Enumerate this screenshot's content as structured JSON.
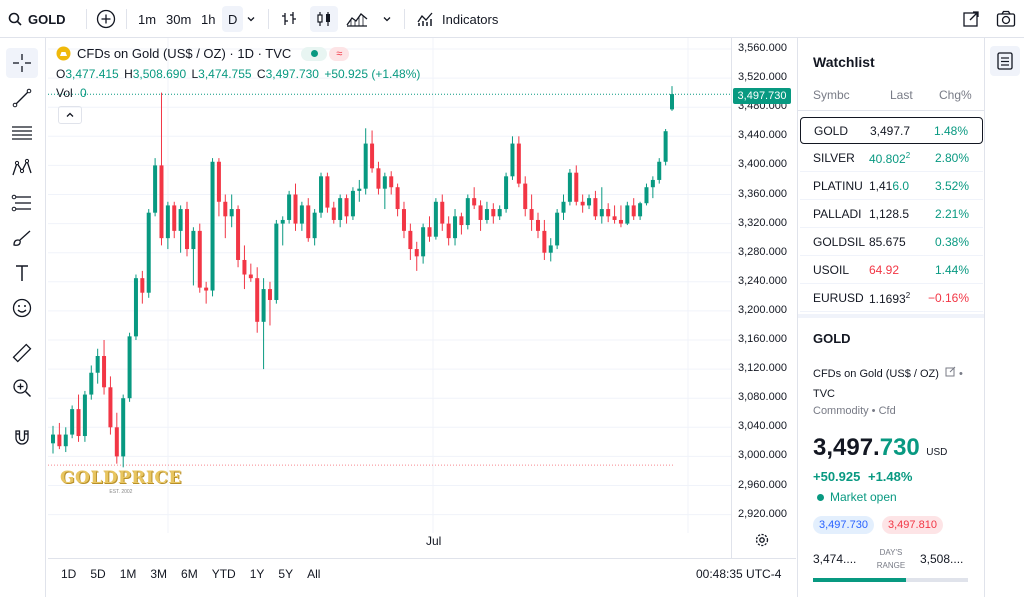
{
  "topbar": {
    "symbol": "GOLD",
    "intervals": [
      "1m",
      "30m",
      "1h",
      "D"
    ],
    "indicators_label": "Indicators"
  },
  "legend": {
    "title": "CFDs on Gold (US$ / OZ) · 1D · TVC",
    "open_label": "O",
    "open": "3,477.415",
    "high_label": "H",
    "high": "3,508.690",
    "low_label": "L",
    "low": "3,474.755",
    "close_label": "C",
    "close": "3,497.730",
    "change": "+50.925 (+1.48%)",
    "vol_label": "Vol",
    "vol": "0"
  },
  "price_axis": {
    "ticks": [
      "3,560.000",
      "3,520.000",
      "3,480.000",
      "3,440.000",
      "3,400.000",
      "3,360.000",
      "3,320.000",
      "3,280.000",
      "3,240.000",
      "3,200.000",
      "3,160.000",
      "3,120.000",
      "3,080.000",
      "3,040.000",
      "3,000.000",
      "2,960.000",
      "2,920.000"
    ],
    "last_price": "3,497.730"
  },
  "time_axis": {
    "label": "Jul"
  },
  "watermark": {
    "text": "GOLDPRICE",
    "sub": "EST. 2002"
  },
  "bottombar": {
    "ranges": [
      "1D",
      "5D",
      "1M",
      "3M",
      "6M",
      "YTD",
      "1Y",
      "5Y",
      "All"
    ],
    "clock": "00:48:35 UTC-4"
  },
  "watchlist": {
    "title": "Watchlist",
    "columns": [
      "Symbc",
      "Last",
      "Chg%"
    ],
    "rows": [
      {
        "symbol": "GOLD",
        "last": "3,497.7",
        "chg": "1.48%",
        "last_dir": "neutral",
        "chg_dir": "up"
      },
      {
        "symbol": "SILVER",
        "last": "40.802",
        "last_sup": "2",
        "chg": "2.80%",
        "last_dir": "up",
        "chg_dir": "up"
      },
      {
        "symbol": "PLATINU",
        "last": "1,41",
        "last_tail": "6.0",
        "chg": "3.52%",
        "last_dir": "neutral",
        "chg_dir": "up"
      },
      {
        "symbol": "PALLADI",
        "last": "1,128.5",
        "chg": "2.21%",
        "last_dir": "neutral",
        "chg_dir": "up"
      },
      {
        "symbol": "GOLDSIL",
        "last": "85.675",
        "chg": "0.38%",
        "last_dir": "neutral",
        "chg_dir": "up"
      },
      {
        "symbol": "USOIL",
        "last": "64.92",
        "chg": "1.44%",
        "last_dir": "down",
        "chg_dir": "up"
      },
      {
        "symbol": "EURUSD",
        "last": "1.1693",
        "last_sup": "2",
        "chg": "−0.16%",
        "last_dir": "neutral",
        "chg_dir": "down"
      }
    ]
  },
  "details": {
    "symbol": "GOLD",
    "name": "CFDs on Gold (US$ / OZ)",
    "exchange": "TVC",
    "category": "Commodity • Cfd",
    "price_main": "3,497.",
    "price_frac": "730",
    "currency": "USD",
    "change": "+50.925",
    "change_pct": "+1.48%",
    "market_status": "Market open",
    "bid": "3,497.730",
    "ask": "3,497.810",
    "range_low": "3,474....",
    "range_label_1": "DAY'S",
    "range_label_2": "RANGE",
    "range_high": "3,508...."
  },
  "colors": {
    "up": "#089981",
    "down": "#f23645",
    "accent": "#2962ff"
  },
  "chart_data": {
    "type": "candlestick",
    "ylim": [
      2900,
      3570
    ],
    "candles": [
      {
        "o": 3018,
        "h": 3042,
        "l": 3004,
        "c": 3030
      },
      {
        "o": 3030,
        "h": 3046,
        "l": 3010,
        "c": 3014
      },
      {
        "o": 3014,
        "h": 3040,
        "l": 3006,
        "c": 3030
      },
      {
        "o": 3030,
        "h": 3070,
        "l": 3025,
        "c": 3065
      },
      {
        "o": 3065,
        "h": 3085,
        "l": 3020,
        "c": 3028
      },
      {
        "o": 3028,
        "h": 3090,
        "l": 3020,
        "c": 3085
      },
      {
        "o": 3085,
        "h": 3125,
        "l": 3078,
        "c": 3115
      },
      {
        "o": 3115,
        "h": 3148,
        "l": 3100,
        "c": 3138
      },
      {
        "o": 3138,
        "h": 3160,
        "l": 3085,
        "c": 3095
      },
      {
        "o": 3095,
        "h": 3110,
        "l": 3030,
        "c": 3040
      },
      {
        "o": 3040,
        "h": 3060,
        "l": 2990,
        "c": 3000
      },
      {
        "o": 3000,
        "h": 3085,
        "l": 2985,
        "c": 3080
      },
      {
        "o": 3080,
        "h": 3170,
        "l": 3075,
        "c": 3165
      },
      {
        "o": 3165,
        "h": 3250,
        "l": 3160,
        "c": 3245
      },
      {
        "o": 3245,
        "h": 3255,
        "l": 3210,
        "c": 3225
      },
      {
        "o": 3225,
        "h": 3340,
        "l": 3218,
        "c": 3335
      },
      {
        "o": 3335,
        "h": 3410,
        "l": 3330,
        "c": 3400
      },
      {
        "o": 3400,
        "h": 3500,
        "l": 3290,
        "c": 3300
      },
      {
        "o": 3300,
        "h": 3350,
        "l": 3285,
        "c": 3345
      },
      {
        "o": 3345,
        "h": 3350,
        "l": 3300,
        "c": 3310
      },
      {
        "o": 3310,
        "h": 3345,
        "l": 3280,
        "c": 3340
      },
      {
        "o": 3340,
        "h": 3350,
        "l": 3275,
        "c": 3285
      },
      {
        "o": 3285,
        "h": 3315,
        "l": 3235,
        "c": 3310
      },
      {
        "o": 3310,
        "h": 3320,
        "l": 3225,
        "c": 3232
      },
      {
        "o": 3232,
        "h": 3240,
        "l": 3210,
        "c": 3228
      },
      {
        "o": 3228,
        "h": 3410,
        "l": 3220,
        "c": 3405
      },
      {
        "o": 3405,
        "h": 3410,
        "l": 3330,
        "c": 3350
      },
      {
        "o": 3350,
        "h": 3360,
        "l": 3300,
        "c": 3330
      },
      {
        "o": 3330,
        "h": 3360,
        "l": 3315,
        "c": 3340
      },
      {
        "o": 3340,
        "h": 3345,
        "l": 3260,
        "c": 3270
      },
      {
        "o": 3270,
        "h": 3290,
        "l": 3230,
        "c": 3250
      },
      {
        "o": 3250,
        "h": 3265,
        "l": 3240,
        "c": 3245
      },
      {
        "o": 3245,
        "h": 3260,
        "l": 3170,
        "c": 3185
      },
      {
        "o": 3185,
        "h": 3245,
        "l": 3120,
        "c": 3230
      },
      {
        "o": 3230,
        "h": 3240,
        "l": 3180,
        "c": 3215
      },
      {
        "o": 3215,
        "h": 3325,
        "l": 3210,
        "c": 3320
      },
      {
        "o": 3320,
        "h": 3330,
        "l": 3290,
        "c": 3325
      },
      {
        "o": 3325,
        "h": 3365,
        "l": 3320,
        "c": 3360
      },
      {
        "o": 3360,
        "h": 3375,
        "l": 3310,
        "c": 3320
      },
      {
        "o": 3320,
        "h": 3350,
        "l": 3310,
        "c": 3345
      },
      {
        "o": 3345,
        "h": 3355,
        "l": 3295,
        "c": 3300
      },
      {
        "o": 3300,
        "h": 3340,
        "l": 3290,
        "c": 3335
      },
      {
        "o": 3335,
        "h": 3390,
        "l": 3328,
        "c": 3385
      },
      {
        "o": 3385,
        "h": 3390,
        "l": 3335,
        "c": 3342
      },
      {
        "o": 3342,
        "h": 3350,
        "l": 3320,
        "c": 3325
      },
      {
        "o": 3325,
        "h": 3360,
        "l": 3315,
        "c": 3355
      },
      {
        "o": 3355,
        "h": 3360,
        "l": 3320,
        "c": 3330
      },
      {
        "o": 3330,
        "h": 3370,
        "l": 3325,
        "c": 3365
      },
      {
        "o": 3365,
        "h": 3380,
        "l": 3350,
        "c": 3368
      },
      {
        "o": 3368,
        "h": 3451,
        "l": 3360,
        "c": 3430
      },
      {
        "o": 3430,
        "h": 3448,
        "l": 3390,
        "c": 3396
      },
      {
        "o": 3396,
        "h": 3405,
        "l": 3360,
        "c": 3368
      },
      {
        "o": 3368,
        "h": 3390,
        "l": 3340,
        "c": 3385
      },
      {
        "o": 3385,
        "h": 3392,
        "l": 3360,
        "c": 3370
      },
      {
        "o": 3370,
        "h": 3375,
        "l": 3330,
        "c": 3340
      },
      {
        "o": 3340,
        "h": 3350,
        "l": 3300,
        "c": 3310
      },
      {
        "o": 3310,
        "h": 3320,
        "l": 3270,
        "c": 3285
      },
      {
        "o": 3285,
        "h": 3295,
        "l": 3255,
        "c": 3275
      },
      {
        "o": 3275,
        "h": 3320,
        "l": 3265,
        "c": 3315
      },
      {
        "o": 3315,
        "h": 3330,
        "l": 3295,
        "c": 3302
      },
      {
        "o": 3302,
        "h": 3355,
        "l": 3298,
        "c": 3350
      },
      {
        "o": 3350,
        "h": 3360,
        "l": 3310,
        "c": 3320
      },
      {
        "o": 3320,
        "h": 3330,
        "l": 3290,
        "c": 3300
      },
      {
        "o": 3300,
        "h": 3340,
        "l": 3290,
        "c": 3330
      },
      {
        "o": 3330,
        "h": 3335,
        "l": 3305,
        "c": 3318
      },
      {
        "o": 3318,
        "h": 3360,
        "l": 3312,
        "c": 3355
      },
      {
        "o": 3355,
        "h": 3370,
        "l": 3340,
        "c": 3345
      },
      {
        "o": 3345,
        "h": 3352,
        "l": 3310,
        "c": 3325
      },
      {
        "o": 3325,
        "h": 3350,
        "l": 3320,
        "c": 3340
      },
      {
        "o": 3340,
        "h": 3348,
        "l": 3320,
        "c": 3330
      },
      {
        "o": 3330,
        "h": 3345,
        "l": 3325,
        "c": 3340
      },
      {
        "o": 3340,
        "h": 3390,
        "l": 3335,
        "c": 3385
      },
      {
        "o": 3385,
        "h": 3440,
        "l": 3380,
        "c": 3430
      },
      {
        "o": 3430,
        "h": 3440,
        "l": 3370,
        "c": 3375
      },
      {
        "o": 3375,
        "h": 3385,
        "l": 3330,
        "c": 3340
      },
      {
        "o": 3340,
        "h": 3360,
        "l": 3310,
        "c": 3325
      },
      {
        "o": 3325,
        "h": 3335,
        "l": 3300,
        "c": 3310
      },
      {
        "o": 3310,
        "h": 3325,
        "l": 3270,
        "c": 3280
      },
      {
        "o": 3280,
        "h": 3300,
        "l": 3268,
        "c": 3290
      },
      {
        "o": 3290,
        "h": 3340,
        "l": 3285,
        "c": 3335
      },
      {
        "o": 3335,
        "h": 3360,
        "l": 3325,
        "c": 3350
      },
      {
        "o": 3350,
        "h": 3395,
        "l": 3345,
        "c": 3390
      },
      {
        "o": 3390,
        "h": 3400,
        "l": 3345,
        "c": 3350
      },
      {
        "o": 3350,
        "h": 3360,
        "l": 3335,
        "c": 3345
      },
      {
        "o": 3345,
        "h": 3360,
        "l": 3340,
        "c": 3355
      },
      {
        "o": 3355,
        "h": 3365,
        "l": 3325,
        "c": 3330
      },
      {
        "o": 3330,
        "h": 3370,
        "l": 3320,
        "c": 3340
      },
      {
        "o": 3340,
        "h": 3348,
        "l": 3322,
        "c": 3330
      },
      {
        "o": 3330,
        "h": 3345,
        "l": 3320,
        "c": 3325
      },
      {
        "o": 3325,
        "h": 3345,
        "l": 3315,
        "c": 3320
      },
      {
        "o": 3320,
        "h": 3350,
        "l": 3318,
        "c": 3345
      },
      {
        "o": 3345,
        "h": 3355,
        "l": 3325,
        "c": 3330
      },
      {
        "o": 3330,
        "h": 3350,
        "l": 3325,
        "c": 3348
      },
      {
        "o": 3348,
        "h": 3375,
        "l": 3345,
        "c": 3370
      },
      {
        "o": 3370,
        "h": 3385,
        "l": 3355,
        "c": 3380
      },
      {
        "o": 3380,
        "h": 3410,
        "l": 3375,
        "c": 3405
      },
      {
        "o": 3405,
        "h": 3450,
        "l": 3400,
        "c": 3447
      },
      {
        "o": 3477,
        "h": 3509,
        "l": 3475,
        "c": 3498
      }
    ]
  }
}
